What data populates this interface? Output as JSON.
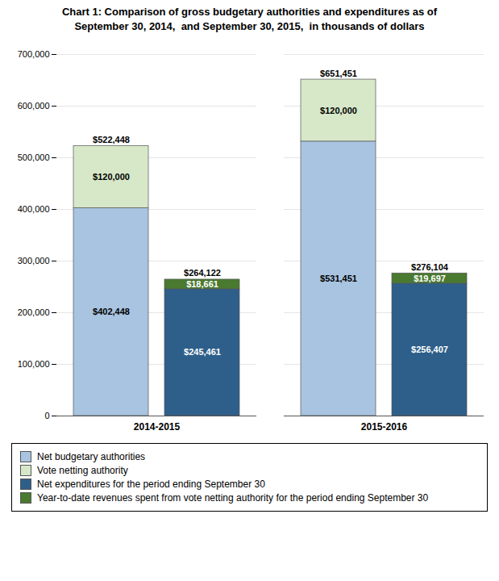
{
  "chart_data": {
    "type": "bar",
    "title": "Chart 1: Comparison of gross budgetary authorities and expenditures as of\nSeptember 30, 2014,  and September 30, 2015,  in thousands of dollars",
    "categories": [
      "2014-2015",
      "2015-2016"
    ],
    "stacked": true,
    "data_labels": true,
    "grid": true,
    "legend": "bottom",
    "ylim": [
      0,
      700000
    ],
    "yticks": [
      0,
      {
        "value": 100000,
        "label": "100,000"
      },
      {
        "value": 200000,
        "label": "200,000"
      },
      {
        "value": 300000,
        "label": "300,000"
      },
      {
        "value": 400000,
        "label": "400,000"
      },
      {
        "value": 500000,
        "label": "500,000"
      },
      {
        "value": 600000,
        "label": "600,000"
      },
      {
        "value": 700000,
        "label": "700,000"
      }
    ],
    "stacks": [
      {
        "series": [
          {
            "name": "Net budgetary authorities",
            "color": "#a8c4e0",
            "values": [
              402448,
              531451
            ],
            "value_labels": [
              "$402,448",
              "$531,451"
            ]
          },
          {
            "name": "Vote netting authority",
            "color": "#d6e8c8",
            "values": [
              120000,
              120000
            ],
            "value_labels": [
              "$120,000",
              "$120,000"
            ]
          }
        ],
        "totals": {
          "values": [
            522448,
            651451
          ],
          "value_labels": [
            "$522,448",
            "$651,451"
          ]
        }
      },
      {
        "series": [
          {
            "name": "Net expenditures for the period ending September 30",
            "color": "#2e5f8a",
            "values": [
              245461,
              256407
            ],
            "value_labels": [
              "$245,461",
              "$256,407"
            ]
          },
          {
            "name": "Year-to-date revenues spent from vote netting authority for the period ending September 30",
            "color": "#4a7a30",
            "values": [
              18661,
              19697
            ],
            "value_labels": [
              "$18,661",
              "$19,697"
            ]
          }
        ],
        "totals": {
          "values": [
            264122,
            276104
          ],
          "value_labels": [
            "$264,122",
            "$276,104"
          ]
        }
      }
    ]
  }
}
